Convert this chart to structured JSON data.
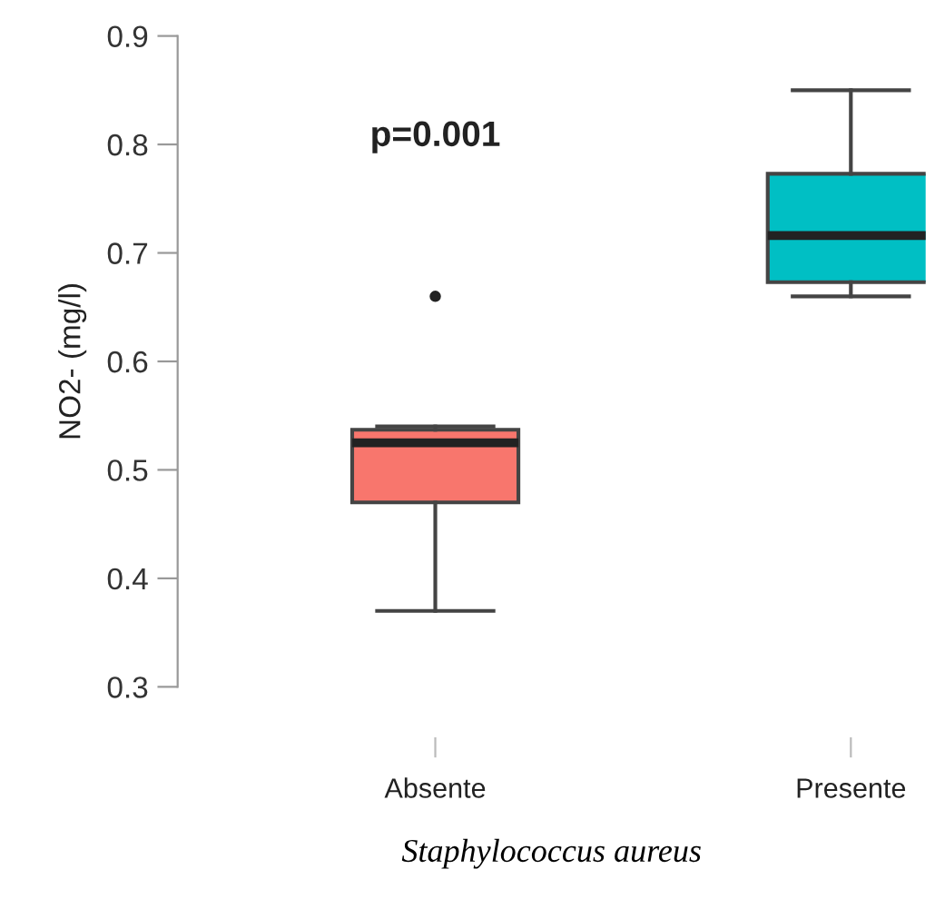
{
  "chart_data": {
    "type": "box",
    "categories": [
      "Absente",
      "Presente"
    ],
    "boxes": [
      {
        "low": 0.37,
        "q1": 0.47,
        "median": 0.525,
        "q3": 0.537,
        "high": 0.54,
        "outliers": [
          0.66
        ]
      },
      {
        "low": 0.66,
        "q1": 0.673,
        "median": 0.716,
        "q3": 0.773,
        "high": 0.85
      }
    ],
    "colors": [
      "#f8766d",
      "#00bfc4"
    ],
    "ylabel": "NO2- (mg/l)",
    "xlabel": "Staphylococcus aureus",
    "ylim": [
      0.3,
      0.9
    ],
    "yticks": [
      0.3,
      0.4,
      0.5,
      0.6,
      0.7,
      0.8,
      0.9
    ],
    "annotations": [
      "p=0.001"
    ]
  }
}
